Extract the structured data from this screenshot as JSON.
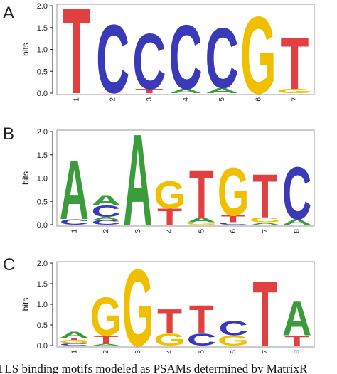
{
  "caption": "TLS binding motifs modeled as PSAMs determined by MatrixR",
  "colors": {
    "A": "#3a9c3a",
    "C": "#3a3ab8",
    "G": "#f0c000",
    "T": "#e04040"
  },
  "chart_data": [
    {
      "type": "sequence-logo",
      "panel_label": "A",
      "ylabel": "bits",
      "ylim": [
        0,
        2.0
      ],
      "yticks": [
        "0.0",
        "0.5",
        "1.0",
        "1.5",
        "2.0"
      ],
      "positions": [
        {
          "label": "1",
          "stack": [
            {
              "base": "T",
              "bits": 2.0
            }
          ]
        },
        {
          "label": "2",
          "stack": [
            {
              "base": "T",
              "bits": 0.01
            },
            {
              "base": "C",
              "bits": 1.6
            }
          ]
        },
        {
          "label": "3",
          "stack": [
            {
              "base": "T",
              "bits": 0.1
            },
            {
              "base": "C",
              "bits": 1.3
            }
          ]
        },
        {
          "label": "4",
          "stack": [
            {
              "base": "A",
              "bits": 0.1
            },
            {
              "base": "C",
              "bits": 1.5
            }
          ]
        },
        {
          "label": "5",
          "stack": [
            {
              "base": "A",
              "bits": 0.12
            },
            {
              "base": "C",
              "bits": 1.4
            }
          ]
        },
        {
          "label": "6",
          "stack": [
            {
              "base": "G",
              "bits": 1.8
            }
          ]
        },
        {
          "label": "7",
          "stack": [
            {
              "base": "G",
              "bits": 0.1
            },
            {
              "base": "T",
              "bits": 1.2
            }
          ]
        }
      ]
    },
    {
      "type": "sequence-logo",
      "panel_label": "B",
      "ylabel": "bits",
      "ylim": [
        0,
        2.0
      ],
      "yticks": [
        "0.0",
        "0.5",
        "1.0",
        "1.5",
        "2.0"
      ],
      "positions": [
        {
          "label": "1",
          "stack": [
            {
              "base": "C",
              "bits": 0.12
            },
            {
              "base": "A",
              "bits": 1.3
            }
          ]
        },
        {
          "label": "2",
          "stack": [
            {
              "base": "C",
              "bits": 0.1
            },
            {
              "base": "A",
              "bits": 0.07
            },
            {
              "base": "C",
              "bits": 0.25
            },
            {
              "base": "A",
              "bits": 0.22
            }
          ]
        },
        {
          "label": "3",
          "stack": [
            {
              "base": "A",
              "bits": 2.0
            }
          ]
        },
        {
          "label": "4",
          "stack": [
            {
              "base": "T",
              "bits": 0.35
            },
            {
              "base": "G",
              "bits": 0.6
            }
          ]
        },
        {
          "label": "5",
          "stack": [
            {
              "base": "G",
              "bits": 0.05
            },
            {
              "base": "A",
              "bits": 0.1
            },
            {
              "base": "T",
              "bits": 1.05
            }
          ]
        },
        {
          "label": "6",
          "stack": [
            {
              "base": "C",
              "bits": 0.05
            },
            {
              "base": "T",
              "bits": 0.15
            },
            {
              "base": "G",
              "bits": 1.05
            }
          ]
        },
        {
          "label": "7",
          "stack": [
            {
              "base": "A",
              "bits": 0.05
            },
            {
              "base": "G",
              "bits": 0.1
            },
            {
              "base": "T",
              "bits": 0.95
            }
          ]
        },
        {
          "label": "8",
          "stack": [
            {
              "base": "A",
              "bits": 0.12
            },
            {
              "base": "C",
              "bits": 1.15
            }
          ]
        }
      ]
    },
    {
      "type": "sequence-logo",
      "panel_label": "C",
      "ylabel": "bits",
      "ylim": [
        0,
        2.0
      ],
      "yticks": [
        "0.0",
        "0.5",
        "1.0",
        "1.5",
        "2.0"
      ],
      "positions": [
        {
          "label": "1",
          "stack": [
            {
              "base": "C",
              "bits": 0.06
            },
            {
              "base": "G",
              "bits": 0.08
            },
            {
              "base": "T",
              "bits": 0.05
            },
            {
              "base": "A",
              "bits": 0.15
            }
          ]
        },
        {
          "label": "2",
          "stack": [
            {
              "base": "A",
              "bits": 0.04
            },
            {
              "base": "T",
              "bits": 0.2
            },
            {
              "base": "G",
              "bits": 0.95
            }
          ]
        },
        {
          "label": "3",
          "stack": [
            {
              "base": "G",
              "bits": 1.9
            }
          ]
        },
        {
          "label": "4",
          "stack": [
            {
              "base": "G",
              "bits": 0.3
            },
            {
              "base": "T",
              "bits": 0.6
            }
          ]
        },
        {
          "label": "5",
          "stack": [
            {
              "base": "C",
              "bits": 0.3
            },
            {
              "base": "T",
              "bits": 0.7
            }
          ]
        },
        {
          "label": "6",
          "stack": [
            {
              "base": "G",
              "bits": 0.25
            },
            {
              "base": "C",
              "bits": 0.35
            }
          ]
        },
        {
          "label": "7",
          "stack": [
            {
              "base": "T",
              "bits": 1.6
            }
          ]
        },
        {
          "label": "8",
          "stack": [
            {
              "base": "T",
              "bits": 0.25
            },
            {
              "base": "A",
              "bits": 0.85
            }
          ]
        }
      ]
    }
  ]
}
